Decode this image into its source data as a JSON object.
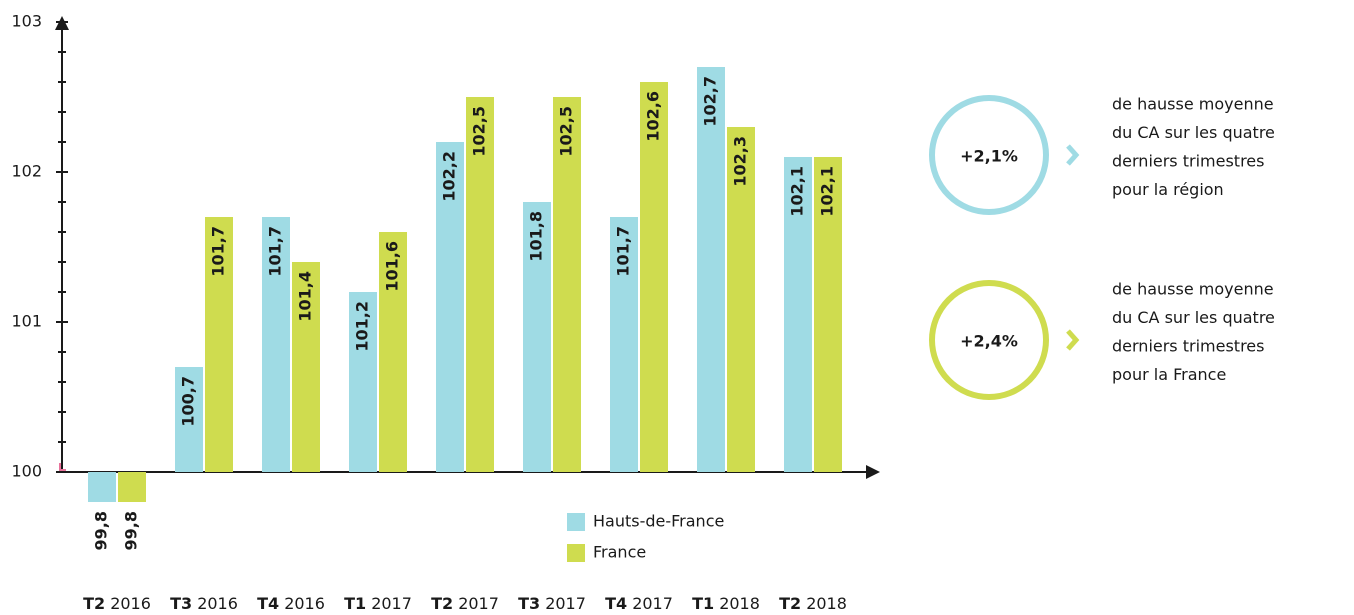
{
  "chart_data": {
    "type": "bar",
    "categories": [
      "T2 2016",
      "T3 2016",
      "T4 2016",
      "T1 2017",
      "T2 2017",
      "T3 2017",
      "T4 2017",
      "T1 2018",
      "T2 2018"
    ],
    "series": [
      {
        "name": "Hauts-de-France",
        "color": "#9fdbe4",
        "values": [
          99.8,
          100.7,
          101.7,
          101.2,
          102.2,
          101.8,
          101.7,
          102.7,
          102.1
        ],
        "value_labels": [
          "99,8",
          "100,7",
          "101,7",
          "101,2",
          "102,2",
          "101,8",
          "101,7",
          "102,7",
          "102,1"
        ]
      },
      {
        "name": "France",
        "color": "#cfdc4f",
        "values": [
          99.8,
          101.7,
          101.4,
          101.6,
          102.5,
          102.5,
          102.6,
          102.3,
          102.1
        ],
        "value_labels": [
          "99,8",
          "101,7",
          "101,4",
          "101,6",
          "102,5",
          "102,5",
          "102,6",
          "102,3",
          "102,1"
        ]
      }
    ],
    "ylim": [
      100,
      103
    ],
    "yticks": [
      100,
      101,
      102,
      103
    ],
    "minor_yticks": [
      100.2,
      100.4,
      100.6,
      100.8,
      101.2,
      101.4,
      101.6,
      101.8,
      102.2,
      102.4,
      102.6,
      102.8
    ],
    "callouts": [
      {
        "label": "+2,1%",
        "color": "#9fdbe4",
        "lines": [
          "de hausse moyenne",
          "du CA sur les quatre",
          "derniers trimestres",
          "pour la région"
        ]
      },
      {
        "label": "+2,4%",
        "color": "#cfdc4f",
        "lines": [
          "de hausse moyenne",
          "du CA sur les quatre",
          "derniers trimestres",
          "pour la France"
        ]
      }
    ]
  }
}
